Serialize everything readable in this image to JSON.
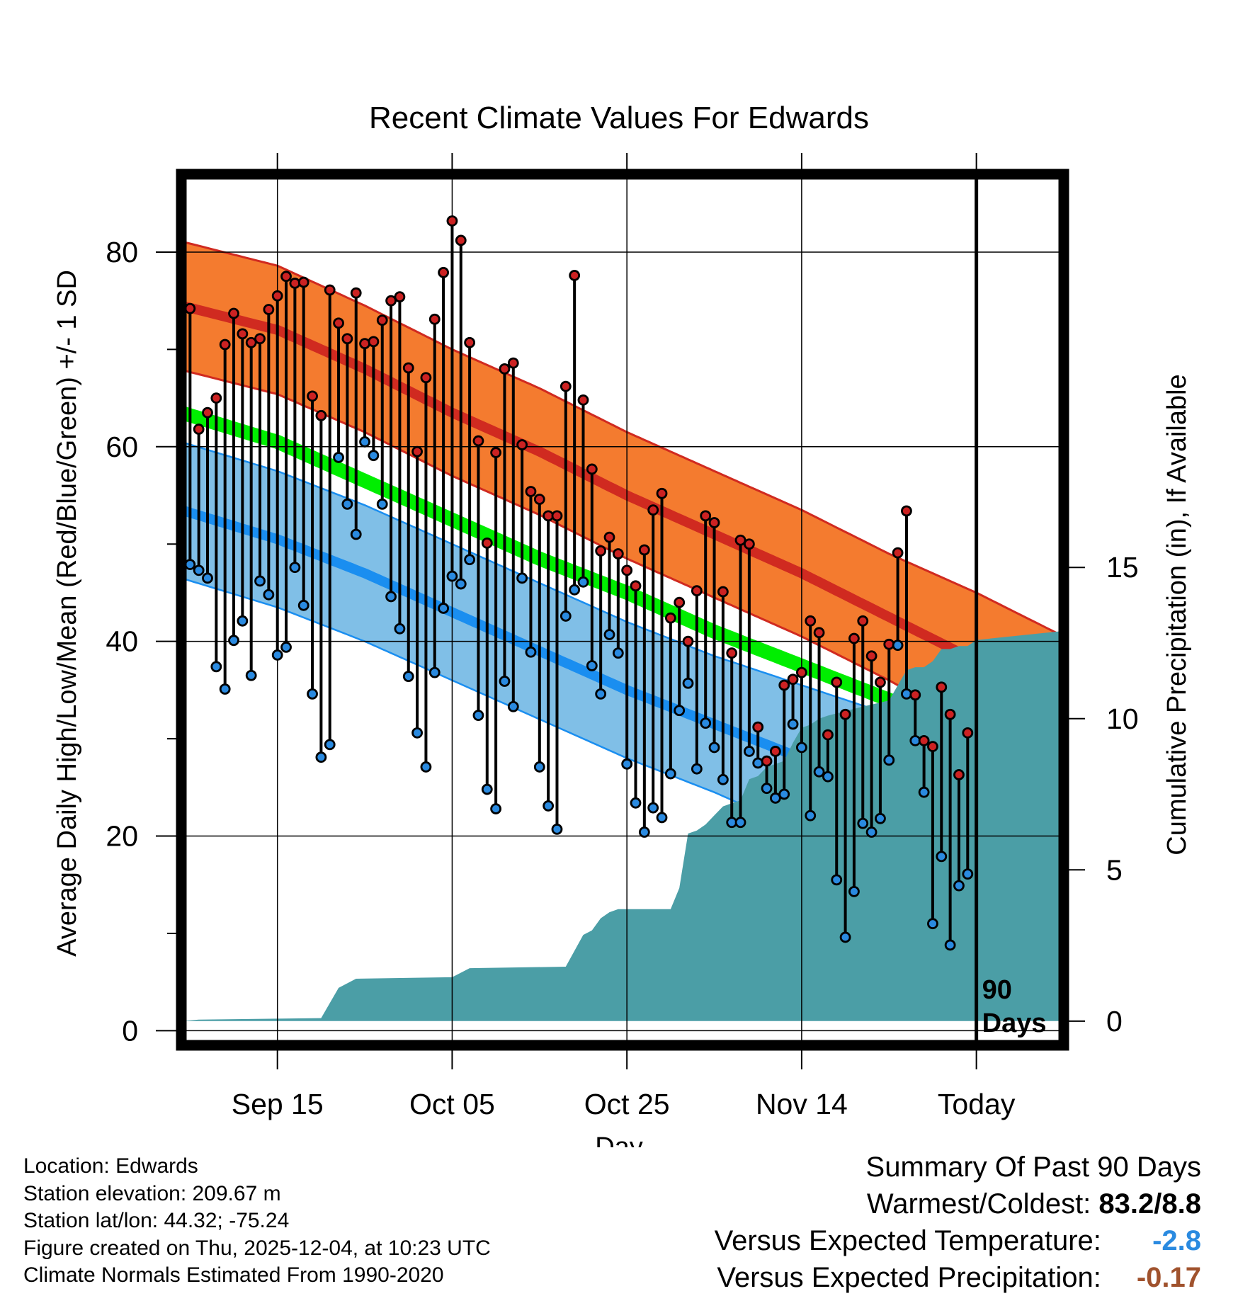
{
  "chart_data": {
    "type": "line",
    "title": "Recent Climate Values For Edwards",
    "xlabel": "Day",
    "ylabel": "Average Daily High/Low/Mean (Red/Blue/Green) +/- 1 SD",
    "y2label": "Cumulative Precipitation (in), If Available",
    "xlim": [
      -1,
      100
    ],
    "ylim": [
      -1.5,
      88
    ],
    "y2lim": [
      -0.8,
      28
    ],
    "x_tick_positions": [
      10,
      30,
      50,
      70,
      90
    ],
    "x_tick_labels": [
      "Sep 15",
      "Oct 05",
      "Oct 25",
      "Nov 14",
      "Today"
    ],
    "y_ticks": [
      0,
      20,
      40,
      60,
      80
    ],
    "y2_ticks": [
      0,
      5,
      10,
      15
    ],
    "today_x": 90,
    "period_label": [
      "90",
      "Days"
    ],
    "normal_high": {
      "x": [
        -1,
        10,
        20,
        30,
        40,
        50,
        60,
        70,
        80,
        90,
        100
      ],
      "mean": [
        74.5,
        72,
        68,
        63.5,
        59.5,
        55,
        51,
        47,
        42.5,
        38,
        33.5
      ],
      "sd": [
        6.6,
        6.6,
        6.5,
        6.5,
        6.5,
        6.5,
        6.5,
        6.5,
        6.5,
        7,
        7
      ]
    },
    "normal_low": {
      "x": [
        -1,
        10,
        20,
        30,
        40,
        50,
        60,
        70,
        80,
        90,
        100
      ],
      "mean": [
        53.5,
        50.5,
        47,
        43,
        39,
        35,
        31.5,
        28,
        24.5,
        21.5,
        18
      ],
      "sd": [
        7,
        7,
        7,
        7,
        7,
        7,
        7,
        7.5,
        8,
        9.5,
        10.5
      ]
    },
    "normal_mean": {
      "x": [
        -1,
        10,
        20,
        30,
        40,
        50,
        60,
        70,
        80,
        90,
        100
      ],
      "values": [
        63.5,
        60.5,
        56.5,
        52.5,
        48.5,
        45,
        41,
        37.5,
        34,
        30,
        26.5
      ]
    },
    "daily": {
      "high": [
        74.2,
        61.8,
        63.5,
        65,
        70.5,
        73.7,
        71.6,
        70.7,
        71.1,
        74.1,
        75.5,
        77.5,
        76.8,
        76.9,
        65.2,
        63.2,
        76.1,
        72.7,
        71.1,
        75.8,
        70.6,
        70.8,
        73,
        75,
        75.4,
        68.1,
        59.5,
        67.1,
        73.1,
        77.9,
        83.2,
        81.2,
        70.7,
        60.6,
        50.1,
        59.4,
        68,
        68.6,
        60.2,
        55.4,
        54.6,
        52.9,
        52.9,
        66.2,
        77.6,
        64.8,
        57.7,
        49.3,
        50.7,
        49,
        47.3,
        45.7,
        49.4,
        53.5,
        55.2,
        42.4,
        44,
        40,
        45.2,
        52.9,
        52.2,
        45.1,
        38.8,
        50.4,
        50,
        31.2,
        27.7,
        28.7,
        35.5,
        36.1,
        36.8,
        42.1,
        40.9,
        30.4,
        35.8,
        32.5,
        40.3,
        42.1,
        38.5,
        35.8,
        39.7,
        49.1,
        53.4,
        34.5,
        29.8,
        29.2,
        35.3,
        32.5,
        26.3,
        30.6
      ],
      "low": [
        47.9,
        47.3,
        46.5,
        37.4,
        35.1,
        40.1,
        42.1,
        36.5,
        46.2,
        44.8,
        38.6,
        39.4,
        47.6,
        43.7,
        34.6,
        28.1,
        29.4,
        58.9,
        54.1,
        51,
        60.5,
        59.1,
        54.1,
        44.6,
        41.3,
        36.4,
        30.6,
        27.1,
        36.8,
        43.4,
        46.7,
        45.9,
        48.4,
        32.4,
        24.8,
        22.8,
        35.9,
        33.3,
        46.5,
        38.9,
        27.1,
        23.1,
        20.7,
        42.6,
        45.3,
        46.1,
        37.5,
        34.6,
        40.7,
        38.8,
        27.4,
        23.4,
        20.4,
        22.9,
        21.9,
        26.4,
        32.9,
        35.7,
        26.9,
        31.6,
        29.1,
        25.8,
        21.4,
        21.4,
        28.7,
        27.5,
        24.9,
        23.9,
        24.3,
        31.5,
        29.1,
        22.1,
        26.6,
        26.1,
        15.5,
        9.6,
        14.3,
        21.3,
        20.4,
        21.8,
        27.8,
        39.6,
        34.6,
        29.8,
        24.5,
        11,
        17.9,
        8.8,
        14.9,
        16.1
      ]
    },
    "precip_cumulative": {
      "x": [
        -1,
        1,
        15,
        17,
        19,
        30,
        32,
        43,
        45,
        46,
        47,
        48,
        49,
        55,
        56,
        57,
        58,
        59,
        60,
        61,
        62,
        63,
        64,
        65,
        66,
        67,
        68,
        69,
        70,
        71,
        72,
        73,
        77,
        80,
        82,
        83,
        84,
        85,
        86,
        87,
        88,
        89,
        90,
        100
      ],
      "values": [
        0,
        0.05,
        0.1,
        1.1,
        1.4,
        1.45,
        1.75,
        1.8,
        2.85,
        3,
        3.4,
        3.6,
        3.7,
        3.7,
        4.4,
        6.2,
        6.3,
        6.5,
        6.8,
        7.1,
        7.2,
        7.3,
        8,
        8.1,
        8.4,
        8.5,
        8.6,
        9.2,
        9.7,
        9.8,
        10,
        10.1,
        10.4,
        10.6,
        11.6,
        11.7,
        11.7,
        11.9,
        12.3,
        12.3,
        12.4,
        12.4,
        12.6,
        12.9
      ]
    },
    "colors": {
      "high_band": "#f47b2f",
      "high_line": "#d02a20",
      "low_band": "#80bfe7",
      "low_line": "#1a8ef0",
      "mean_line": "#00ee00",
      "overlap": "#8b0a10",
      "precip": "#4b9ea6",
      "high_marker": "#cc2222",
      "low_marker": "#2a8ae0"
    }
  },
  "info": {
    "location": "Location: Edwards",
    "elevation": "Station elevation: 209.67 m",
    "latlon": "Station lat/lon: 44.32; -75.24",
    "created": "Figure created on Thu, 2025-12-04, at 10:23 UTC",
    "normals": "Climate Normals Estimated From 1990-2020"
  },
  "summary": {
    "heading": "Summary Of Past 90 Days",
    "warm_cold_label": "Warmest/Coldest:",
    "warm_cold_value": "83.2/8.8",
    "temp_label": "Versus Expected Temperature:",
    "temp_value": "-2.8",
    "temp_color": "#2a8ae0",
    "precip_label": "Versus Expected Precipitation:",
    "precip_value": "-0.17",
    "precip_color": "#a0522d"
  }
}
